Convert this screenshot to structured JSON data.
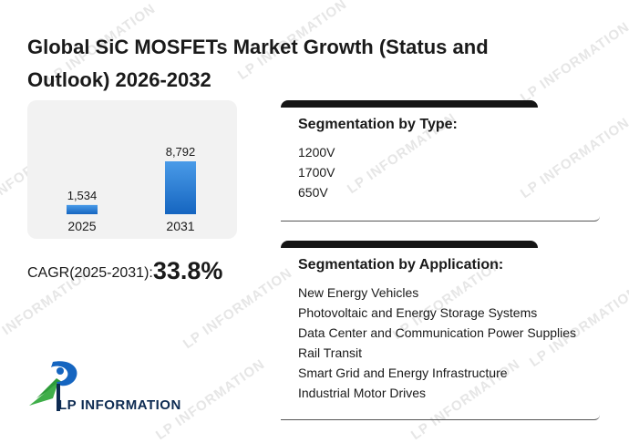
{
  "title": "Global SiC MOSFETs Market Growth (Status and Outlook) 2026-2032",
  "watermark_text": "LP INFORMATION",
  "chart_data": {
    "type": "bar",
    "categories": [
      "2025",
      "2031"
    ],
    "values": [
      1534,
      8792
    ],
    "value_labels": [
      "1,534",
      "8,792"
    ],
    "title": "",
    "xlabel": "",
    "ylabel": "",
    "grid": false,
    "colors": {
      "bar_top": "#4a9be8",
      "bar_bottom": "#1565c0",
      "panel": "#f2f2f2"
    }
  },
  "cagr": {
    "label": "CAGR(2025-2031):",
    "value": "33.8%"
  },
  "segmentation_type": {
    "title": "Segmentation by Type:",
    "items": [
      "1200V",
      "1700V",
      "650V"
    ]
  },
  "segmentation_application": {
    "title": "Segmentation by Application:",
    "items": [
      "New Energy Vehicles",
      "Photovoltaic and Energy Storage Systems",
      "Data Center and Communication Power Supplies",
      "Rail Transit",
      "Smart Grid and Energy Infrastructure",
      "Industrial Motor Drives"
    ]
  },
  "logo": {
    "text": "LP INFORMATION",
    "icon": "lp-information-logo-icon"
  }
}
